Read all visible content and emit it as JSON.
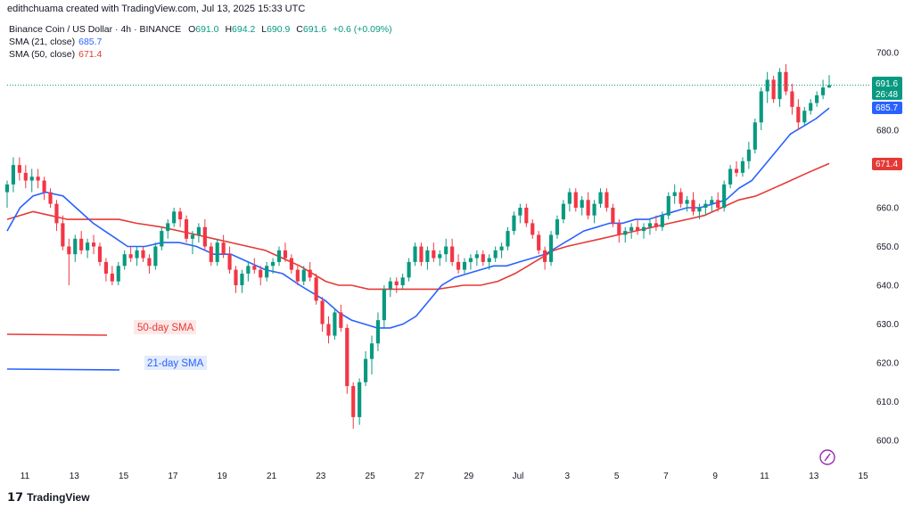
{
  "header": {
    "attribution": "edithchuama created with TradingView.com, Jul 13, 2025 15:33 UTC"
  },
  "legend": {
    "symbol": "Binance Coin / US Dollar · 4h · BINANCE",
    "o_label": "O",
    "o": "691.0",
    "h_label": "H",
    "h": "694.2",
    "l_label": "L",
    "l": "690.9",
    "c_label": "C",
    "c": "691.6",
    "change": "+0.6 (+0.09%)",
    "sma21_label": "SMA (21, close)",
    "sma21_value": "685.7",
    "sma50_label": "SMA (50, close)",
    "sma50_value": "671.4"
  },
  "annotations": {
    "sma50": "50-day SMA",
    "sma21": "21-day SMA"
  },
  "price_badge": {
    "price": "691.6",
    "countdown": "26:48"
  },
  "footer": {
    "brand": "TradingView"
  },
  "colors": {
    "up": "#089981",
    "down": "#f23645",
    "sma21": "#2962ff",
    "sma50": "#e53935",
    "sma50_ann_bg": "#fde8e8",
    "sma21_ann_bg": "#e3ecfb"
  },
  "chart_data": {
    "type": "candlestick",
    "y_axis": {
      "range": [
        595,
        705
      ],
      "ticks": [
        600,
        610,
        620,
        630,
        640,
        650,
        660,
        670,
        680,
        690,
        700
      ],
      "position": "right"
    },
    "x_axis": {
      "ticks": [
        "11",
        "13",
        "15",
        "17",
        "19",
        "21",
        "23",
        "25",
        "27",
        "29",
        "Jul",
        "3",
        "5",
        "7",
        "9",
        "11",
        "13",
        "15"
      ]
    },
    "grid": false,
    "last_price": 691.6,
    "series": [
      {
        "name": "SMA (21, close)",
        "color": "#2962ff",
        "points": [
          [
            0,
            654
          ],
          [
            3,
            660
          ],
          [
            6,
            663
          ],
          [
            9,
            664
          ],
          [
            13,
            663
          ],
          [
            16,
            660
          ],
          [
            20,
            656
          ],
          [
            24,
            653
          ],
          [
            28,
            650
          ],
          [
            32,
            650
          ],
          [
            36,
            651
          ],
          [
            40,
            651
          ],
          [
            44,
            650
          ],
          [
            48,
            648
          ],
          [
            52,
            648
          ],
          [
            56,
            646
          ],
          [
            60,
            644
          ],
          [
            64,
            643
          ],
          [
            68,
            640
          ],
          [
            71,
            638
          ],
          [
            74,
            636
          ],
          [
            77,
            633
          ],
          [
            80,
            631
          ],
          [
            83,
            630
          ],
          [
            86,
            629
          ],
          [
            89,
            629
          ],
          [
            92,
            630
          ],
          [
            95,
            632
          ],
          [
            98,
            636
          ],
          [
            101,
            640
          ],
          [
            104,
            642
          ],
          [
            107,
            643
          ],
          [
            110,
            644
          ],
          [
            113,
            645
          ],
          [
            116,
            645
          ],
          [
            119,
            646
          ],
          [
            122,
            647
          ],
          [
            125,
            648
          ],
          [
            128,
            650
          ],
          [
            131,
            652
          ],
          [
            134,
            654
          ],
          [
            137,
            655
          ],
          [
            140,
            656
          ],
          [
            143,
            656
          ],
          [
            146,
            657
          ],
          [
            149,
            657
          ],
          [
            152,
            658
          ],
          [
            155,
            659
          ],
          [
            158,
            660
          ],
          [
            161,
            660
          ],
          [
            164,
            661
          ],
          [
            167,
            662
          ],
          [
            170,
            665
          ],
          [
            173,
            667
          ],
          [
            176,
            671
          ],
          [
            179,
            675
          ],
          [
            182,
            679
          ],
          [
            185,
            681
          ],
          [
            188,
            683
          ],
          [
            191,
            685.7
          ]
        ]
      },
      {
        "name": "SMA (50, close)",
        "color": "#e53935",
        "points": [
          [
            0,
            657
          ],
          [
            6,
            659
          ],
          [
            10,
            658
          ],
          [
            14,
            657
          ],
          [
            20,
            657
          ],
          [
            26,
            657
          ],
          [
            30,
            656
          ],
          [
            36,
            655
          ],
          [
            40,
            654
          ],
          [
            44,
            653
          ],
          [
            48,
            652
          ],
          [
            52,
            651
          ],
          [
            56,
            650
          ],
          [
            60,
            649
          ],
          [
            64,
            647
          ],
          [
            68,
            645
          ],
          [
            71,
            643
          ],
          [
            74,
            641
          ],
          [
            77,
            640
          ],
          [
            80,
            640
          ],
          [
            84,
            639
          ],
          [
            88,
            639
          ],
          [
            94,
            639
          ],
          [
            100,
            639
          ],
          [
            106,
            640
          ],
          [
            110,
            640
          ],
          [
            114,
            641
          ],
          [
            118,
            643
          ],
          [
            121,
            645
          ],
          [
            124,
            647
          ],
          [
            127,
            649
          ],
          [
            130,
            650
          ],
          [
            134,
            651
          ],
          [
            138,
            652
          ],
          [
            142,
            653
          ],
          [
            146,
            654
          ],
          [
            150,
            655
          ],
          [
            154,
            656
          ],
          [
            158,
            657
          ],
          [
            162,
            658
          ],
          [
            166,
            660
          ],
          [
            170,
            662
          ],
          [
            174,
            663
          ],
          [
            178,
            665
          ],
          [
            182,
            667
          ],
          [
            186,
            669
          ],
          [
            191,
            671.4
          ]
        ]
      }
    ],
    "candles": [
      [
        0,
        664,
        667,
        660,
        666
      ],
      [
        1,
        666,
        673,
        664,
        671
      ],
      [
        2,
        671,
        673,
        667,
        669
      ],
      [
        3,
        669,
        671,
        665,
        667
      ],
      [
        4,
        667,
        670,
        664,
        668
      ],
      [
        5,
        668,
        670,
        665,
        667
      ],
      [
        6,
        667,
        668,
        662,
        664
      ],
      [
        7,
        664,
        665,
        660,
        661
      ],
      [
        8,
        661,
        662,
        654,
        656
      ],
      [
        9,
        656,
        658,
        649,
        650
      ],
      [
        10,
        650,
        652,
        640,
        648
      ],
      [
        11,
        648,
        653,
        646,
        652
      ],
      [
        12,
        652,
        654,
        648,
        649
      ],
      [
        13,
        649,
        652,
        647,
        651
      ],
      [
        14,
        651,
        653,
        648,
        650
      ],
      [
        15,
        650,
        651,
        645,
        646
      ],
      [
        16,
        646,
        647,
        641,
        643
      ],
      [
        17,
        643,
        645,
        640,
        641
      ],
      [
        18,
        641,
        646,
        640,
        645
      ],
      [
        19,
        645,
        649,
        644,
        648
      ],
      [
        20,
        648,
        650,
        646,
        647
      ],
      [
        21,
        647,
        650,
        645,
        649
      ],
      [
        22,
        649,
        650,
        646,
        647
      ],
      [
        23,
        647,
        648,
        643,
        645
      ],
      [
        24,
        645,
        651,
        644,
        650
      ],
      [
        25,
        650,
        655,
        649,
        654
      ],
      [
        26,
        654,
        657,
        652,
        656
      ],
      [
        27,
        656,
        660,
        655,
        659
      ],
      [
        28,
        659,
        660,
        655,
        657
      ],
      [
        29,
        657,
        658,
        651,
        652
      ],
      [
        30,
        652,
        654,
        648,
        653
      ],
      [
        31,
        653,
        656,
        651,
        655
      ],
      [
        32,
        655,
        657,
        649,
        650
      ],
      [
        33,
        650,
        651,
        645,
        646
      ],
      [
        34,
        646,
        652,
        645,
        651
      ],
      [
        35,
        651,
        653,
        647,
        648
      ],
      [
        36,
        648,
        650,
        643,
        644
      ],
      [
        37,
        644,
        645,
        638,
        640
      ],
      [
        38,
        640,
        644,
        638,
        643
      ],
      [
        39,
        643,
        646,
        641,
        645
      ],
      [
        40,
        645,
        647,
        643,
        644
      ],
      [
        41,
        644,
        645,
        640,
        642
      ],
      [
        42,
        642,
        646,
        641,
        645
      ],
      [
        43,
        645,
        647,
        643,
        646
      ],
      [
        44,
        646,
        650,
        645,
        649
      ],
      [
        45,
        649,
        651,
        646,
        647
      ],
      [
        46,
        647,
        648,
        643,
        644
      ],
      [
        47,
        644,
        645,
        640,
        641
      ],
      [
        48,
        641,
        645,
        640,
        644
      ],
      [
        49,
        644,
        646,
        641,
        642
      ],
      [
        50,
        642,
        643,
        635,
        636
      ],
      [
        51,
        636,
        637,
        628,
        630
      ],
      [
        52,
        630,
        632,
        625,
        627
      ],
      [
        53,
        627,
        634,
        626,
        633
      ],
      [
        54,
        633,
        635,
        628,
        629
      ],
      [
        55,
        629,
        630,
        612,
        614
      ],
      [
        56,
        614,
        615,
        603,
        606
      ],
      [
        57,
        606,
        616,
        604,
        615
      ],
      [
        58,
        615,
        623,
        614,
        621
      ],
      [
        59,
        621,
        627,
        617,
        625
      ],
      [
        60,
        625,
        633,
        623,
        631
      ],
      [
        61,
        631,
        640,
        629,
        639
      ],
      [
        62,
        639,
        642,
        637,
        641
      ],
      [
        63,
        641,
        642,
        638,
        640
      ],
      [
        64,
        640,
        643,
        639,
        642
      ],
      [
        65,
        642,
        647,
        641,
        646
      ],
      [
        66,
        646,
        651,
        645,
        650
      ],
      [
        67,
        650,
        651,
        645,
        646
      ],
      [
        68,
        646,
        650,
        644,
        649
      ],
      [
        69,
        649,
        651,
        646,
        647
      ],
      [
        70,
        647,
        649,
        645,
        648
      ],
      [
        71,
        648,
        652,
        646,
        650
      ],
      [
        72,
        650,
        652,
        645,
        646
      ],
      [
        73,
        646,
        648,
        643,
        644
      ],
      [
        74,
        644,
        647,
        643,
        646
      ],
      [
        75,
        646,
        648,
        644,
        647
      ],
      [
        76,
        647,
        649,
        645,
        648
      ],
      [
        77,
        648,
        649,
        645,
        646
      ],
      [
        78,
        646,
        648,
        644,
        647
      ],
      [
        79,
        647,
        650,
        646,
        649
      ],
      [
        80,
        649,
        651,
        647,
        650
      ],
      [
        81,
        650,
        655,
        649,
        654
      ],
      [
        82,
        654,
        659,
        653,
        658
      ],
      [
        83,
        658,
        661,
        656,
        660
      ],
      [
        84,
        660,
        661,
        655,
        656
      ],
      [
        85,
        656,
        657,
        652,
        653
      ],
      [
        86,
        653,
        654,
        648,
        649
      ],
      [
        87,
        649,
        650,
        644,
        646
      ],
      [
        88,
        646,
        654,
        645,
        653
      ],
      [
        89,
        653,
        658,
        652,
        657
      ],
      [
        90,
        657,
        662,
        656,
        661
      ],
      [
        91,
        661,
        665,
        659,
        664
      ],
      [
        92,
        664,
        665,
        659,
        660
      ],
      [
        93,
        660,
        663,
        658,
        662
      ],
      [
        94,
        662,
        664,
        657,
        658
      ],
      [
        95,
        658,
        662,
        656,
        661
      ],
      [
        96,
        661,
        665,
        660,
        664
      ],
      [
        97,
        664,
        665,
        659,
        660
      ],
      [
        98,
        660,
        661,
        655,
        656
      ],
      [
        99,
        656,
        657,
        651,
        653
      ],
      [
        100,
        653,
        655,
        651,
        654
      ],
      [
        101,
        654,
        656,
        652,
        655
      ],
      [
        102,
        655,
        657,
        653,
        654
      ],
      [
        103,
        654,
        656,
        652,
        655
      ],
      [
        104,
        655,
        657,
        653,
        656
      ],
      [
        105,
        656,
        658,
        654,
        655
      ],
      [
        106,
        655,
        659,
        654,
        658
      ],
      [
        107,
        658,
        664,
        657,
        663
      ],
      [
        108,
        663,
        666,
        661,
        664
      ],
      [
        109,
        664,
        665,
        660,
        661
      ],
      [
        110,
        661,
        663,
        659,
        662
      ],
      [
        111,
        662,
        664,
        658,
        659
      ],
      [
        112,
        659,
        661,
        657,
        660
      ],
      [
        113,
        660,
        662,
        658,
        661
      ],
      [
        114,
        661,
        663,
        659,
        662
      ],
      [
        115,
        662,
        664,
        659,
        660
      ],
      [
        116,
        660,
        667,
        659,
        666
      ],
      [
        117,
        666,
        671,
        665,
        670
      ],
      [
        118,
        670,
        672,
        668,
        669
      ],
      [
        119,
        669,
        673,
        668,
        672
      ],
      [
        120,
        672,
        677,
        670,
        675
      ],
      [
        121,
        675,
        683,
        674,
        682
      ],
      [
        122,
        682,
        691,
        680,
        690
      ],
      [
        123,
        690,
        695,
        687,
        693
      ],
      [
        124,
        693,
        694,
        687,
        688
      ],
      [
        125,
        688,
        696,
        686,
        695
      ],
      [
        126,
        695,
        697,
        689,
        690
      ],
      [
        127,
        690,
        692,
        684,
        686
      ],
      [
        128,
        686,
        688,
        680,
        682
      ],
      [
        129,
        682,
        686,
        681,
        685
      ],
      [
        130,
        685,
        688,
        684,
        687
      ],
      [
        131,
        687,
        690,
        686,
        689
      ],
      [
        132,
        689,
        693,
        688,
        691
      ],
      [
        133,
        691.0,
        694.2,
        690.9,
        691.6
      ]
    ]
  }
}
